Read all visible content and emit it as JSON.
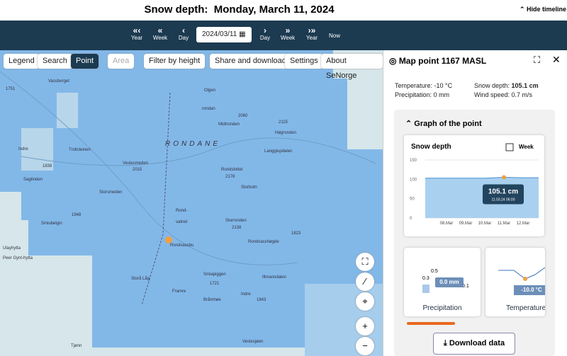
{
  "header": {
    "title": "Snow depth:  Monday, March 11, 2024",
    "hide_timeline": "Hide timeline"
  },
  "timeline": {
    "back_year": "Year",
    "back_week": "Week",
    "back_day": "Day",
    "date": "2024/03/11",
    "fwd_day": "Day",
    "fwd_week": "Week",
    "fwd_year": "Year",
    "now": "Now"
  },
  "toolbar": [
    "Legend",
    "Search",
    "Point",
    "Area",
    "Filter by height",
    "Share and download",
    "Settings",
    "About SeNorge"
  ],
  "map_labels": [
    "1751",
    "Vassberget",
    "Olgen",
    "rondan",
    "2060",
    "Midtronden",
    "2115",
    "Høgronden",
    "RONDANE",
    "Indre",
    "Trollsteinen",
    "Veslesmeden",
    "2015",
    "Langglupdalen",
    "Sagtinden",
    "1838",
    "Rondslottet",
    "2178",
    "Storsmeden",
    "Storbotn",
    "Smiubelgin",
    "1948",
    "Rond-",
    "vatnet",
    "Storronden",
    "2138",
    "1823",
    "Rondvassbu",
    "Rondvasshøgde",
    "Ulayhytta",
    "Peer Gynt-hytta",
    "Smiapiggen",
    "Illmanndalen",
    "1721",
    "Framre",
    "Indre",
    "Bråmhøe",
    "1843",
    "Storå Låg",
    "Veslesjøen",
    "Tjønn"
  ],
  "panel": {
    "title": "Map point 1167 MASL",
    "temperature": "Temperature: -10 °C",
    "precipitation": "Precipitation: 0 mm",
    "snow_depth_label": "Snow depth: ",
    "snow_depth_value": "105.1 cm",
    "wind_speed": "Wind speed: 0.7 m/s",
    "section": "Graph of the point",
    "snow_chart": {
      "type": "line",
      "title": "Snow depth",
      "period": "Week",
      "categories": [
        "08.Mar",
        "09.Mar",
        "10.Mar",
        "11.Mar",
        "12.Mar"
      ],
      "values": [
        103,
        103,
        103,
        105.1,
        104
      ],
      "ylim": [
        0,
        150
      ],
      "yticks": [
        0,
        50,
        100,
        150
      ],
      "tooltip_value": "105.1 cm",
      "tooltip_time": "11.03.24 06:00"
    },
    "precip_card": {
      "title": "Precipitation",
      "labels": [
        "0.5",
        "0.3",
        "0.1"
      ],
      "tooltip": "0.0 mm"
    },
    "temp_card": {
      "title": "Temperature",
      "tooltip": "-10.0 °C"
    },
    "download": "Download data"
  }
}
